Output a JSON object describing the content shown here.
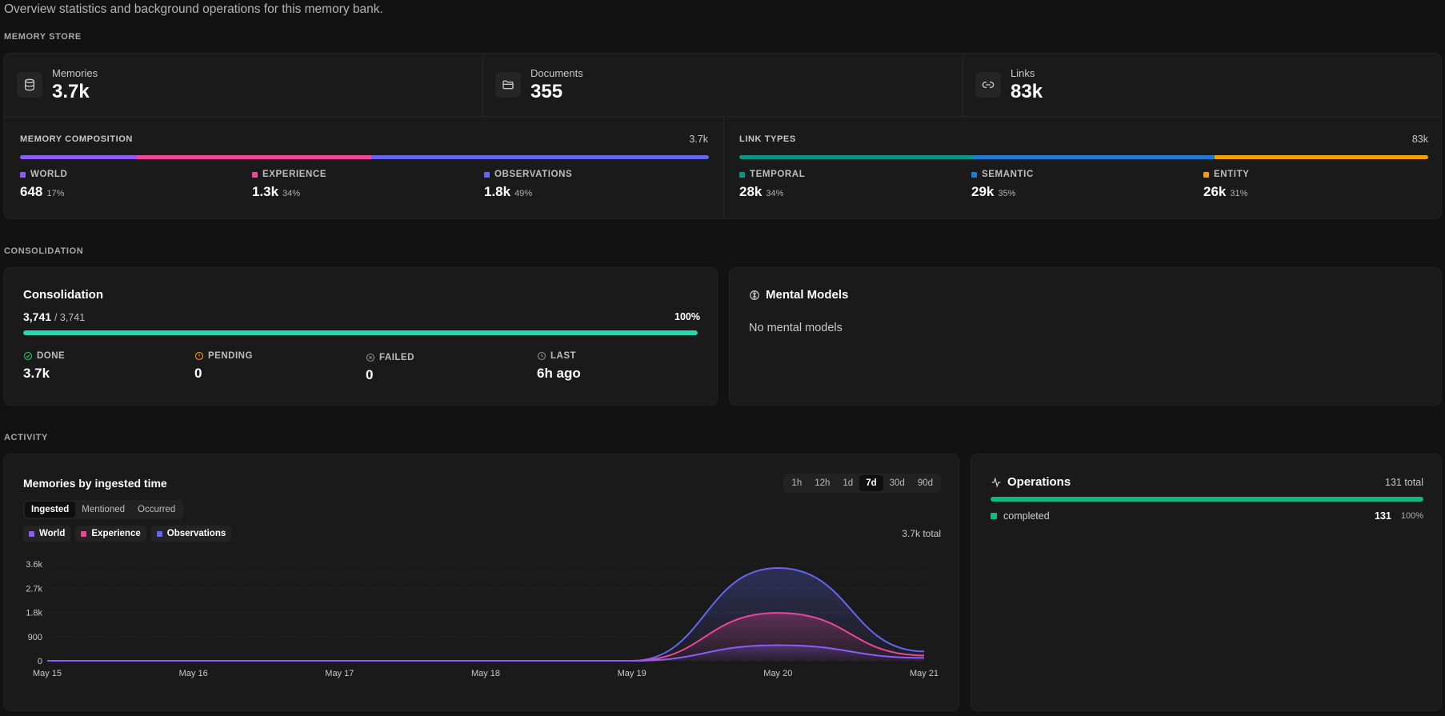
{
  "page": {
    "subtitle": "Overview statistics and background operations for this memory bank."
  },
  "sections": {
    "memory_store": "MEMORY STORE",
    "consolidation": "CONSOLIDATION",
    "activity": "ACTIVITY"
  },
  "stats": [
    {
      "label": "Memories",
      "value": "3.7k",
      "icon": "database-icon"
    },
    {
      "label": "Documents",
      "value": "355",
      "icon": "folder-icon"
    },
    {
      "label": "Links",
      "value": "83k",
      "icon": "link-icon"
    }
  ],
  "composition": {
    "title": "MEMORY COMPOSITION",
    "total": "3.7k",
    "items": [
      {
        "name": "WORLD",
        "value": "648",
        "pct": "17%",
        "fraction": 0.17,
        "color": "#8b5cf6"
      },
      {
        "name": "EXPERIENCE",
        "value": "1.3k",
        "pct": "34%",
        "fraction": 0.34,
        "color": "#ec4899"
      },
      {
        "name": "OBSERVATIONS",
        "value": "1.8k",
        "pct": "49%",
        "fraction": 0.49,
        "color": "#6366f1"
      }
    ]
  },
  "link_types": {
    "title": "LINK TYPES",
    "total": "83k",
    "items": [
      {
        "name": "TEMPORAL",
        "value": "28k",
        "pct": "34%",
        "fraction": 0.34,
        "color": "#0d9488"
      },
      {
        "name": "SEMANTIC",
        "value": "29k",
        "pct": "35%",
        "fraction": 0.35,
        "color": "#2079d4"
      },
      {
        "name": "ENTITY",
        "value": "26k",
        "pct": "31%",
        "fraction": 0.31,
        "color": "#f59e0b"
      }
    ]
  },
  "consolidation": {
    "title": "Consolidation",
    "done_count": "3,741",
    "total_count": "/ 3,741",
    "percent": "100%",
    "progress": 1.0,
    "progress_color": "#2dd4b0",
    "stats": [
      {
        "label": "DONE",
        "value": "3.7k",
        "icon": "check-circle-icon",
        "color": "#22c55e"
      },
      {
        "label": "PENDING",
        "value": "0",
        "icon": "alert-circle-icon",
        "color": "#f59e0b"
      },
      {
        "label": "FAILED",
        "value": "0",
        "icon": "x-circle-icon",
        "color": "#8a8a8a"
      },
      {
        "label": "LAST",
        "value": "6h ago",
        "icon": "clock-icon",
        "color": "#8a8a8a"
      }
    ]
  },
  "mental_models": {
    "title": "Mental Models",
    "icon": "brain-icon",
    "empty_text": "No mental models"
  },
  "activity_chart": {
    "title": "Memories by ingested time",
    "ranges": [
      "1h",
      "12h",
      "1d",
      "7d",
      "30d",
      "90d"
    ],
    "active_range": "7d",
    "modes": [
      "Ingested",
      "Mentioned",
      "Occurred"
    ],
    "active_mode": "Ingested",
    "total_text": "3.7k total"
  },
  "chart_data": {
    "type": "area",
    "x": [
      "May 15",
      "May 16",
      "May 17",
      "May 18",
      "May 19",
      "May 20",
      "May 21"
    ],
    "yticks": [
      "0",
      "900",
      "1.8k",
      "2.7k",
      "3.6k"
    ],
    "ylim": [
      0,
      3600
    ],
    "series": [
      {
        "name": "World",
        "color": "#8b5cf6",
        "values": [
          0,
          0,
          0,
          0,
          0,
          580,
          110
        ]
      },
      {
        "name": "Experience",
        "color": "#ec4899",
        "values": [
          0,
          0,
          0,
          0,
          0,
          1780,
          200
        ]
      },
      {
        "name": "Observations",
        "color": "#6366f1",
        "values": [
          0,
          0,
          0,
          0,
          0,
          3450,
          350
        ]
      }
    ]
  },
  "operations": {
    "title": "Operations",
    "icon": "activity-icon",
    "total": "131 total",
    "items": [
      {
        "name": "completed",
        "count": "131",
        "pct": "100%",
        "fraction": 1.0,
        "color": "#10b981"
      }
    ]
  }
}
